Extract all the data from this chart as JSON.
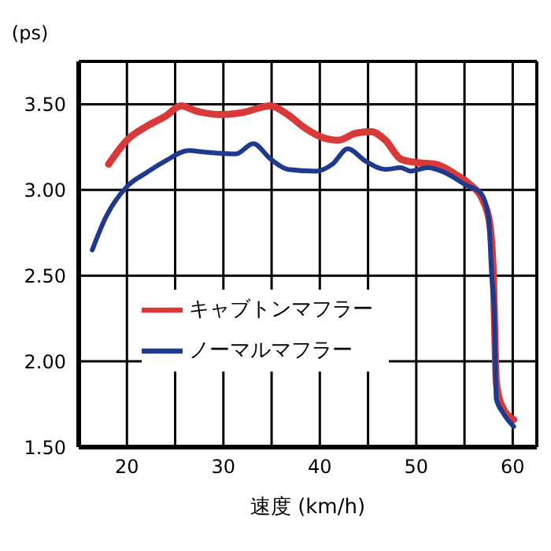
{
  "chart_data": {
    "type": "line",
    "xlabel": "速度 (km/h)",
    "ylabel": "(ps)",
    "xlim": [
      15,
      62.5
    ],
    "xticks": [
      20,
      {
        "value": 25,
        "label": null
      },
      30,
      {
        "value": 35,
        "label": null
      },
      40,
      {
        "value": 45,
        "label": null
      },
      50,
      {
        "value": 55,
        "label": null
      },
      60
    ],
    "ylim": [
      1.5,
      3.75
    ],
    "yticks": [
      {
        "value": 1.5,
        "label": "1.50"
      },
      {
        "value": 2,
        "label": "2.00"
      },
      {
        "value": 2.5,
        "label": "2.50"
      },
      {
        "value": 3,
        "label": "3.00"
      },
      {
        "value": 3.5,
        "label": "3.50"
      }
    ],
    "grid": true,
    "legend": "left",
    "marker": "none",
    "line_style": "solid",
    "series": [
      {
        "name": "キャブトンマフラー",
        "color": "#d83a3a",
        "x": [
          18.1,
          20,
          22,
          24,
          25.6,
          27.2,
          29.7,
          31.8,
          34.9,
          36.4,
          38.5,
          40.1,
          41.9,
          43.7,
          45.3,
          46.8,
          48.4,
          50,
          52,
          54.1,
          55.6,
          56.9,
          57.6,
          58,
          58.1,
          58.3,
          58.8,
          60.1
        ],
        "values": [
          3.15,
          3.29,
          3.37,
          3.43,
          3.49,
          3.46,
          3.44,
          3.45,
          3.49,
          3.45,
          3.36,
          3.31,
          3.29,
          3.33,
          3.34,
          3.29,
          3.18,
          3.16,
          3.15,
          3.09,
          3.03,
          2.94,
          2.81,
          2.49,
          2.26,
          1.88,
          1.75,
          1.66
        ]
      },
      {
        "name": "ノーマルマフラー",
        "color": "#1f3a8c",
        "x": [
          16.4,
          17.8,
          20,
          22,
          24,
          26.4,
          28.2,
          31.3,
          33.1,
          34.9,
          36.7,
          39.6,
          41.3,
          42.9,
          44.7,
          46.8,
          48.4,
          49.4,
          51.2,
          53,
          55.1,
          56.7,
          57.5,
          57.8,
          58.1,
          58.3,
          59,
          60.1
        ],
        "values": [
          2.65,
          2.84,
          3.02,
          3.1,
          3.17,
          3.23,
          3.22,
          3.21,
          3.27,
          3.18,
          3.12,
          3.11,
          3.15,
          3.24,
          3.17,
          3.12,
          3.13,
          3.11,
          3.13,
          3.1,
          3.03,
          2.98,
          2.84,
          2.52,
          2.26,
          1.78,
          1.7,
          1.62
        ]
      }
    ]
  }
}
